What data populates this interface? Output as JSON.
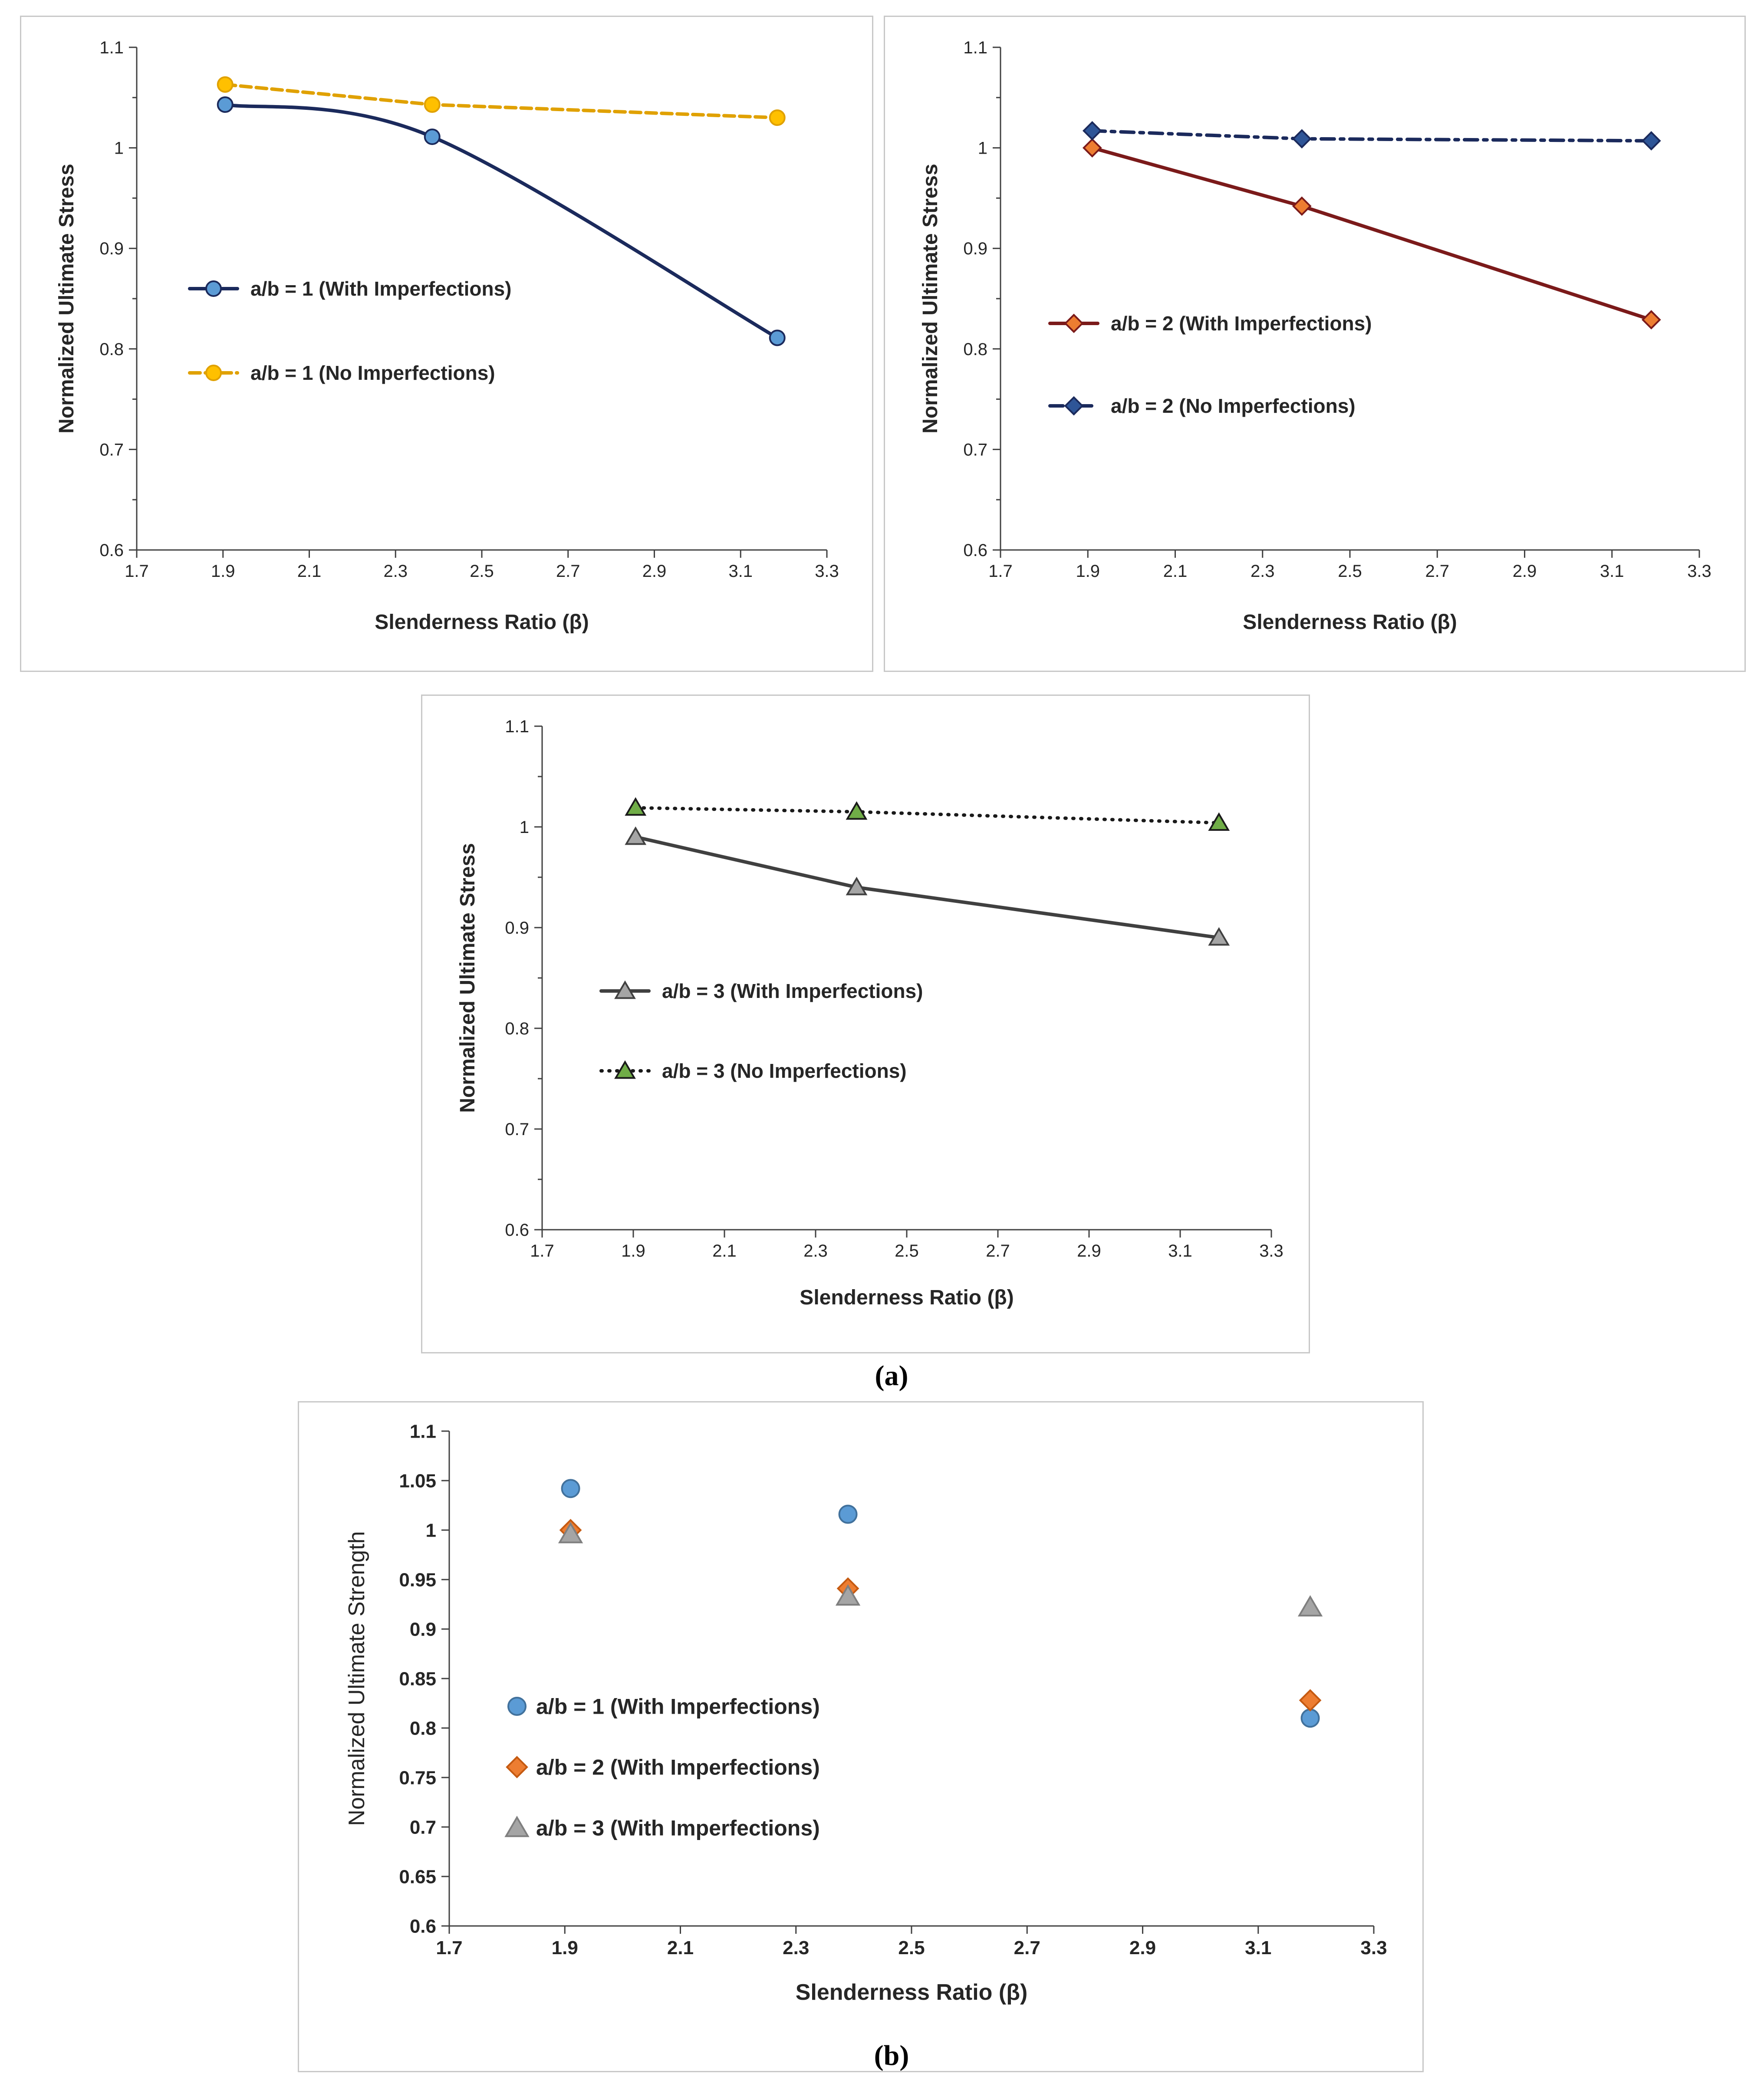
{
  "chart_data": [
    {
      "type": "line",
      "panel": "a-1",
      "xlabel": "Slenderness Ratio (β)",
      "ylabel": "Normalized Ultimate Stress",
      "xlim": [
        1.7,
        3.3
      ],
      "ylim": [
        0.6,
        1.1
      ],
      "xticks": [
        "1.7",
        "1.9",
        "2.1",
        "2.3",
        "2.5",
        "2.7",
        "2.9",
        "3.1",
        "3.3"
      ],
      "yticks": [
        "0.6",
        "0.7",
        "0.8",
        "0.9",
        "1",
        "1.1"
      ],
      "series": [
        {
          "name": "a/b = 1 (With Imperfections)",
          "x": [
            1.905,
            2.385,
            3.185
          ],
          "y": [
            1.043,
            1.011,
            0.811
          ],
          "color": "#1b2a5c",
          "marker_fill": "#5b9bd5",
          "marker": "circle",
          "dash": "",
          "smooth": true
        },
        {
          "name": "a/b = 1 (No Imperfections)",
          "x": [
            1.905,
            2.385,
            3.185
          ],
          "y": [
            1.063,
            1.043,
            1.03
          ],
          "color": "#e0a100",
          "marker_fill": "#ffc000",
          "marker": "circle",
          "dash": "24 12",
          "smooth": false
        }
      ]
    },
    {
      "type": "line",
      "panel": "a-2",
      "xlabel": "Slenderness Ratio (β)",
      "ylabel": "Normalized Ultimate Stress",
      "xlim": [
        1.7,
        3.3
      ],
      "ylim": [
        0.6,
        1.1
      ],
      "xticks": [
        "1.7",
        "1.9",
        "2.1",
        "2.3",
        "2.5",
        "2.7",
        "2.9",
        "3.1",
        "3.3"
      ],
      "yticks": [
        "0.6",
        "0.7",
        "0.8",
        "0.9",
        "1",
        "1.1"
      ],
      "series": [
        {
          "name": "a/b = 2 (With Imperfections)",
          "x": [
            1.91,
            2.39,
            3.19
          ],
          "y": [
            1.0,
            0.942,
            0.829
          ],
          "color": "#7b1a1a",
          "marker_fill": "#ed7d31",
          "marker": "diamond",
          "dash": "",
          "smooth": false
        },
        {
          "name": "a/b = 2 (No Imperfections)",
          "x": [
            1.91,
            2.39,
            3.19
          ],
          "y": [
            1.017,
            1.009,
            1.007
          ],
          "color": "#1b2a5c",
          "marker_fill": "#2e5597",
          "marker": "diamond",
          "dash": "30 14 8 14",
          "smooth": false
        }
      ]
    },
    {
      "type": "line",
      "panel": "a-3",
      "xlabel": "Slenderness Ratio (β)",
      "ylabel": "Normalized Ultimate Stress",
      "xlim": [
        1.7,
        3.3
      ],
      "ylim": [
        0.6,
        1.1
      ],
      "xticks": [
        "1.7",
        "1.9",
        "2.1",
        "2.3",
        "2.5",
        "2.7",
        "2.9",
        "3.1",
        "3.3"
      ],
      "yticks": [
        "0.6",
        "0.7",
        "0.8",
        "0.9",
        "1",
        "1.1"
      ],
      "series": [
        {
          "name": "a/b = 3 (With Imperfections)",
          "x": [
            1.905,
            2.39,
            3.185
          ],
          "y": [
            0.99,
            0.94,
            0.89
          ],
          "color": "#404040",
          "marker_fill": "#a5a5a5",
          "marker": "triangle",
          "dash": "",
          "smooth": false
        },
        {
          "name": "a/b = 3 (No Imperfections)",
          "x": [
            1.905,
            2.39,
            3.185
          ],
          "y": [
            1.019,
            1.015,
            1.004
          ],
          "color": "#1a1a1a",
          "marker_fill": "#70ad47",
          "marker": "triangle",
          "dash": "2 16",
          "smooth": false
        }
      ]
    },
    {
      "type": "scatter",
      "panel": "b",
      "xlabel": "Slenderness Ratio (β)",
      "ylabel": "Normalized Ultimate Strength",
      "xlim": [
        1.7,
        3.3
      ],
      "ylim": [
        0.6,
        1.1
      ],
      "xticks": [
        "1.7",
        "1.9",
        "2.1",
        "2.3",
        "2.5",
        "2.7",
        "2.9",
        "3.1",
        "3.3"
      ],
      "yticks": [
        "0.6",
        "0.65",
        "0.7",
        "0.75",
        "0.8",
        "0.85",
        "0.9",
        "0.95",
        "1",
        "1.05",
        "1.1"
      ],
      "series": [
        {
          "name": "a/b = 1 (With Imperfections)",
          "x": [
            1.91,
            2.39,
            3.19
          ],
          "y": [
            1.042,
            1.016,
            0.81
          ],
          "color": "#41719c",
          "marker_fill": "#5b9bd5",
          "marker": "circle"
        },
        {
          "name": "a/b = 2 (With Imperfections)",
          "x": [
            1.91,
            2.39,
            3.19
          ],
          "y": [
            1.0,
            0.941,
            0.828
          ],
          "color": "#c55a11",
          "marker_fill": "#ed7d31",
          "marker": "diamond"
        },
        {
          "name": "a/b = 3 (With Imperfections)",
          "x": [
            1.91,
            2.39,
            3.19
          ],
          "y": [
            0.996,
            0.933,
            0.922
          ],
          "color": "#7f7f7f",
          "marker_fill": "#a5a5a5",
          "marker": "triangle"
        }
      ]
    }
  ],
  "captions": {
    "a": "(a)",
    "b": "(b)"
  }
}
